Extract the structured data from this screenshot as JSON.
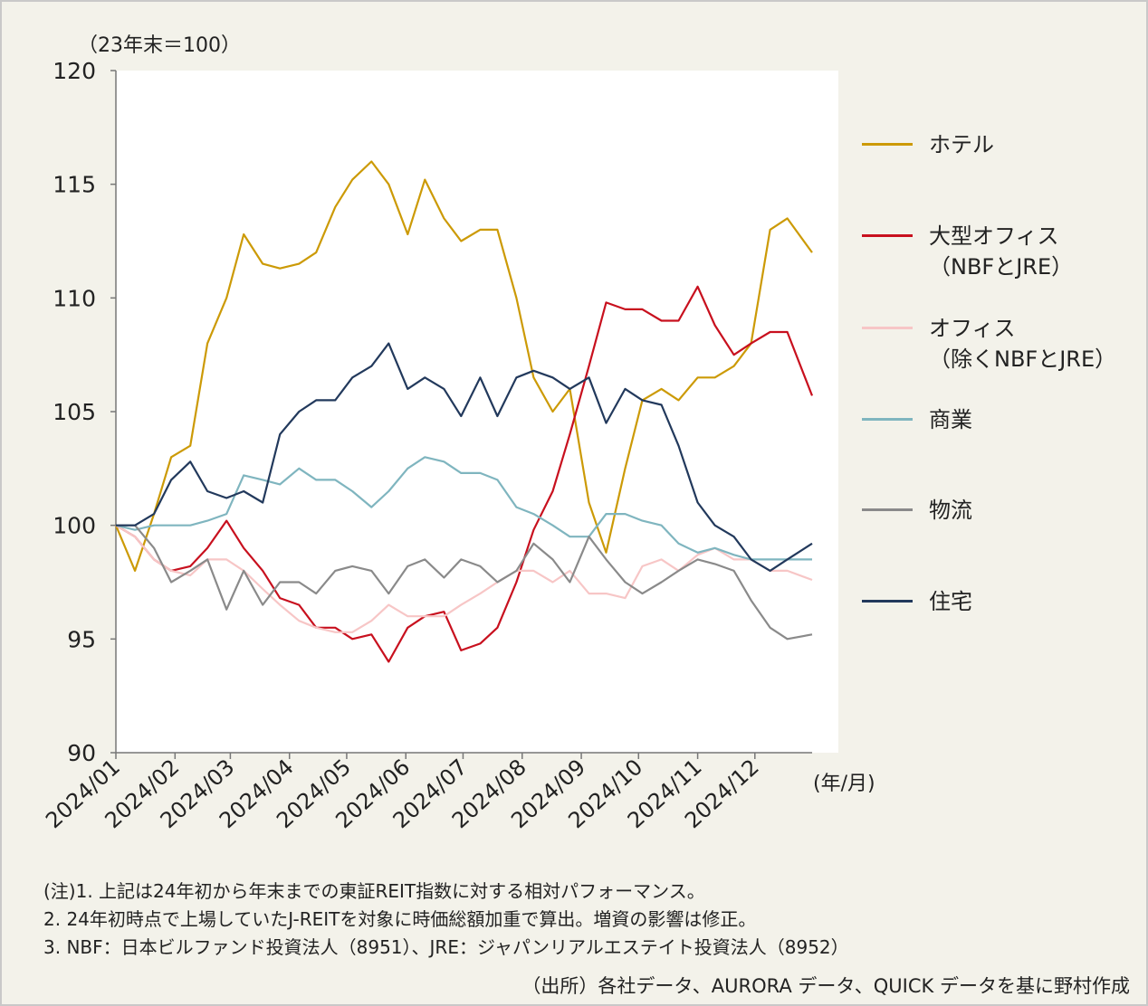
{
  "chart_data": {
    "type": "line",
    "ylabel": "（23年末＝100）",
    "xunit": "(年/月)",
    "ylim": [
      90,
      120
    ],
    "yticks": [
      90,
      95,
      100,
      105,
      110,
      115,
      120
    ],
    "xlim": [
      "2024-01-01",
      "2024-12-31"
    ],
    "xticks": [
      {
        "date": "2024-01-01",
        "label": "2024/01"
      },
      {
        "date": "2024-02-01",
        "label": "2024/02"
      },
      {
        "date": "2024-03-01",
        "label": "2024/03"
      },
      {
        "date": "2024-04-01",
        "label": "2024/04"
      },
      {
        "date": "2024-05-01",
        "label": "2024/05"
      },
      {
        "date": "2024-06-01",
        "label": "2024/06"
      },
      {
        "date": "2024-07-01",
        "label": "2024/07"
      },
      {
        "date": "2024-08-01",
        "label": "2024/08"
      },
      {
        "date": "2024-09-01",
        "label": "2024/09"
      },
      {
        "date": "2024-10-01",
        "label": "2024/10"
      },
      {
        "date": "2024-11-01",
        "label": "2024/11"
      },
      {
        "date": "2024-12-01",
        "label": "2024/12"
      }
    ],
    "grid": false,
    "legend_position": "right",
    "x": [
      "2024-01-01",
      "2024-01-11",
      "2024-01-21",
      "2024-01-30",
      "2024-02-09",
      "2024-02-18",
      "2024-02-28",
      "2024-03-08",
      "2024-03-18",
      "2024-03-27",
      "2024-04-06",
      "2024-04-15",
      "2024-04-25",
      "2024-05-04",
      "2024-05-14",
      "2024-05-23",
      "2024-06-02",
      "2024-06-11",
      "2024-06-21",
      "2024-06-30",
      "2024-07-10",
      "2024-07-19",
      "2024-07-29",
      "2024-08-07",
      "2024-08-17",
      "2024-08-26",
      "2024-09-05",
      "2024-09-14",
      "2024-09-24",
      "2024-10-03",
      "2024-10-13",
      "2024-10-22",
      "2024-11-01",
      "2024-11-10",
      "2024-11-20",
      "2024-11-29",
      "2024-12-09",
      "2024-12-18",
      "2024-12-31"
    ],
    "series": [
      {
        "name": "ホテル",
        "color": "#cc9a06",
        "values": [
          100,
          98,
          100.5,
          103,
          103.5,
          108,
          110,
          112.8,
          111.5,
          111.3,
          111.5,
          112,
          114,
          115.2,
          116,
          115,
          112.8,
          115.2,
          113.5,
          112.5,
          113,
          113,
          110,
          106.5,
          105,
          106,
          101,
          98.8,
          102.5,
          105.5,
          106,
          105.5,
          106.5,
          106.5,
          107,
          108,
          113,
          113.5,
          112
        ]
      },
      {
        "name": "大型オフィス\n（NBFとJRE）",
        "color": "#c8101e",
        "values": [
          100,
          99.5,
          98.5,
          98,
          98.2,
          99,
          100.2,
          99,
          98,
          96.8,
          96.5,
          95.5,
          95.5,
          95,
          95.2,
          94,
          95.5,
          96,
          96.2,
          94.5,
          94.8,
          95.5,
          97.5,
          99.8,
          101.5,
          104,
          107,
          109.8,
          109.5,
          109.5,
          109,
          109,
          110.5,
          108.8,
          107.5,
          108,
          108.5,
          108.5,
          105.7
        ]
      },
      {
        "name": "オフィス\n（除くNBFとJRE）",
        "color": "#f7c6c6",
        "values": [
          100,
          99.5,
          98.5,
          98,
          97.8,
          98.5,
          98.5,
          98,
          97.2,
          96.5,
          95.8,
          95.5,
          95.3,
          95.3,
          95.8,
          96.5,
          96,
          96,
          96,
          96.5,
          97,
          97.5,
          98,
          98,
          97.5,
          98,
          97,
          97,
          96.8,
          98.2,
          98.5,
          98,
          98.7,
          99,
          98.5,
          98.5,
          98,
          98,
          97.6
        ]
      },
      {
        "name": "商業",
        "color": "#7fb5bf",
        "values": [
          100,
          99.8,
          100,
          100,
          100,
          100.2,
          100.5,
          102.2,
          102,
          101.8,
          102.5,
          102,
          102,
          101.5,
          100.8,
          101.5,
          102.5,
          103,
          102.8,
          102.3,
          102.3,
          102,
          100.8,
          100.5,
          100,
          99.5,
          99.5,
          100.5,
          100.5,
          100.2,
          100,
          99.2,
          98.8,
          99,
          98.7,
          98.5,
          98.5,
          98.5,
          98.5
        ]
      },
      {
        "name": "物流",
        "color": "#8a8a8a",
        "values": [
          100,
          100,
          99,
          97.5,
          98,
          98.5,
          96.3,
          98,
          96.5,
          97.5,
          97.5,
          97,
          98,
          98.2,
          98,
          97,
          98.2,
          98.5,
          97.7,
          98.5,
          98.2,
          97.5,
          98,
          99.2,
          98.5,
          97.5,
          99.5,
          98.5,
          97.5,
          97,
          97.5,
          98,
          98.5,
          98.3,
          98,
          96.7,
          95.5,
          95,
          95.2
        ]
      },
      {
        "name": "住宅",
        "color": "#22395c",
        "values": [
          100,
          100,
          100.5,
          102,
          102.8,
          101.5,
          101.2,
          101.5,
          101,
          104,
          105,
          105.5,
          105.5,
          106.5,
          107,
          108,
          106,
          106.5,
          106,
          104.8,
          106.5,
          104.8,
          106.5,
          106.8,
          106.5,
          106,
          106.5,
          104.5,
          106,
          105.5,
          105.3,
          103.5,
          101,
          100,
          99.5,
          98.5,
          98,
          98.5,
          99.2
        ]
      }
    ]
  },
  "notes": [
    "(注)1. 上記は24年初から年末までの東証REIT指数に対する相対パフォーマンス。",
    "2. 24年初時点で上場していたJ-REITを対象に時価総額加重で算出。増資の影響は修正。",
    "3. NBF：日本ビルファンド投資法人（8951）、JRE：ジャパンリアルエステイト投資法人（8952）"
  ],
  "source": "（出所）各社データ、AURORA データ、QUICK データを基に野村作成"
}
